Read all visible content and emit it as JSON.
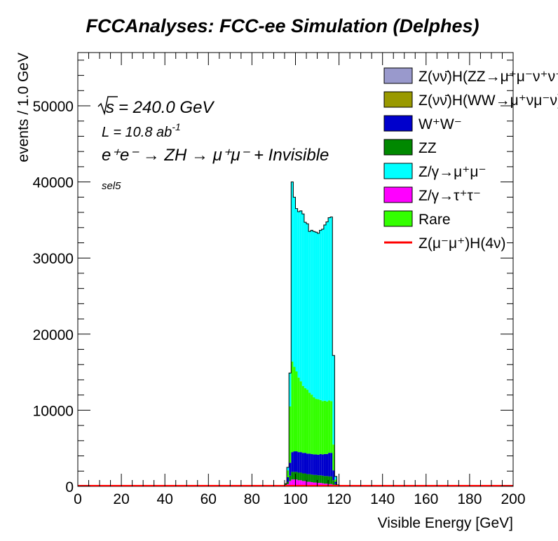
{
  "chart_data": {
    "type": "bar",
    "title": "FCCAnalyses: FCC-ee Simulation (Delphes)",
    "xlabel": "Visible Energy [GeV]",
    "ylabel": "events / 1.0 GeV",
    "xlim": [
      0,
      200
    ],
    "ylim": [
      0,
      57000
    ],
    "stacked": true,
    "x_ticks": [
      "0",
      "20",
      "40",
      "60",
      "80",
      "100",
      "120",
      "140",
      "160",
      "180",
      "200"
    ],
    "y_ticks": [
      "0",
      "10000",
      "20000",
      "30000",
      "40000",
      "50000"
    ],
    "annotations": {
      "sqrt_s": "= 240.0 GeV",
      "lumi_prefix": "L = 10.8 ab",
      "lumi_exp": "-1",
      "process": "e⁺e⁻ → ZH → μ⁺μ⁻ + Invisible",
      "selection": "sel5"
    },
    "x": [
      95,
      96,
      97,
      98,
      99,
      100,
      101,
      102,
      103,
      104,
      105,
      106,
      107,
      108,
      109,
      110,
      111,
      112,
      113,
      114,
      115,
      116,
      117,
      118,
      119,
      120
    ],
    "series": [
      {
        "name": "Z(νν̄)H(ZZ→μ⁺μ⁻ν⁺ν⁻)",
        "color": "#9999cc",
        "values": [
          0,
          0,
          0,
          0,
          0,
          0,
          0,
          0,
          0,
          0,
          0,
          0,
          0,
          0,
          0,
          0,
          0,
          0,
          0,
          0,
          0,
          0,
          0,
          0,
          0,
          0
        ]
      },
      {
        "name": "Z(νν̄)H(WW→μ⁺νμ⁻ν)",
        "color": "#999900",
        "values": [
          0,
          0,
          0,
          0,
          0,
          0,
          0,
          0,
          0,
          0,
          0,
          0,
          0,
          0,
          0,
          0,
          0,
          0,
          0,
          0,
          0,
          0,
          0,
          0,
          0,
          0
        ]
      },
      {
        "name": "W⁺W⁻",
        "color": "#0000cc",
        "values": [
          0,
          600,
          1700,
          2600,
          2700,
          2700,
          2700,
          2700,
          2700,
          2700,
          2700,
          2700,
          2700,
          2700,
          2700,
          2700,
          2800,
          2800,
          2900,
          2900,
          3100,
          3100,
          1300,
          300,
          0,
          0
        ]
      },
      {
        "name": "ZZ",
        "color": "#008800",
        "values": [
          200,
          300,
          700,
          1000,
          1000,
          1000,
          1000,
          1000,
          1000,
          1000,
          1000,
          1000,
          1000,
          1000,
          1000,
          1000,
          1000,
          1000,
          1000,
          1000,
          1000,
          1000,
          600,
          200,
          50,
          0
        ]
      },
      {
        "name": "Z/γ→μ⁺μ⁻",
        "color": "#00ffff",
        "values": [
          0,
          400,
          4400,
          23600,
          22300,
          21400,
          21800,
          22400,
          22600,
          21800,
          21800,
          21200,
          21600,
          21800,
          21900,
          21800,
          22300,
          22600,
          23100,
          23600,
          24000,
          24200,
          11700,
          400,
          50,
          0
        ]
      },
      {
        "name": "Z/γ→τ⁺τ⁻",
        "color": "#ff00ff",
        "values": [
          150,
          300,
          700,
          900,
          900,
          900,
          800,
          800,
          700,
          700,
          600,
          600,
          550,
          500,
          500,
          450,
          450,
          400,
          350,
          350,
          300,
          300,
          200,
          100,
          30,
          0
        ]
      },
      {
        "name": "Rare",
        "color": "#33ff00",
        "values": [
          0,
          900,
          7400,
          11900,
          11100,
          10500,
          9800,
          9300,
          8800,
          8500,
          8400,
          8000,
          7800,
          7500,
          7300,
          7300,
          7100,
          7000,
          7000,
          6900,
          6900,
          6800,
          3400,
          300,
          50,
          0
        ]
      },
      {
        "name": "Z(μ⁻μ⁺)H(4ν)",
        "color": "#ff0000",
        "values": [
          0,
          0,
          0,
          0,
          0,
          0,
          0,
          0,
          0,
          0,
          0,
          0,
          0,
          0,
          0,
          0,
          0,
          0,
          0,
          0,
          0,
          0,
          0,
          0,
          0,
          0
        ]
      }
    ],
    "legend": {
      "placement": "top-right",
      "entries": [
        {
          "label": "Z(νν̄)H(ZZ→μ⁺μ⁻ν⁺ν⁻)",
          "color": "#9999cc",
          "style": "box"
        },
        {
          "label": "Z(νν̄)H(WW→μ⁺νμ⁻ν)",
          "color": "#999900",
          "style": "box"
        },
        {
          "label": "W⁺W⁻",
          "color": "#0000cc",
          "style": "box"
        },
        {
          "label": "ZZ",
          "color": "#008800",
          "style": "box"
        },
        {
          "label": "Z/γ→μ⁺μ⁻",
          "color": "#00ffff",
          "style": "box"
        },
        {
          "label": "Z/γ→τ⁺τ⁻",
          "color": "#ff00ff",
          "style": "box"
        },
        {
          "label": "Rare",
          "color": "#33ff00",
          "style": "box"
        },
        {
          "label": "Z(μ⁻μ⁺)H(4ν)",
          "color": "#ff0000",
          "style": "line"
        }
      ]
    }
  }
}
